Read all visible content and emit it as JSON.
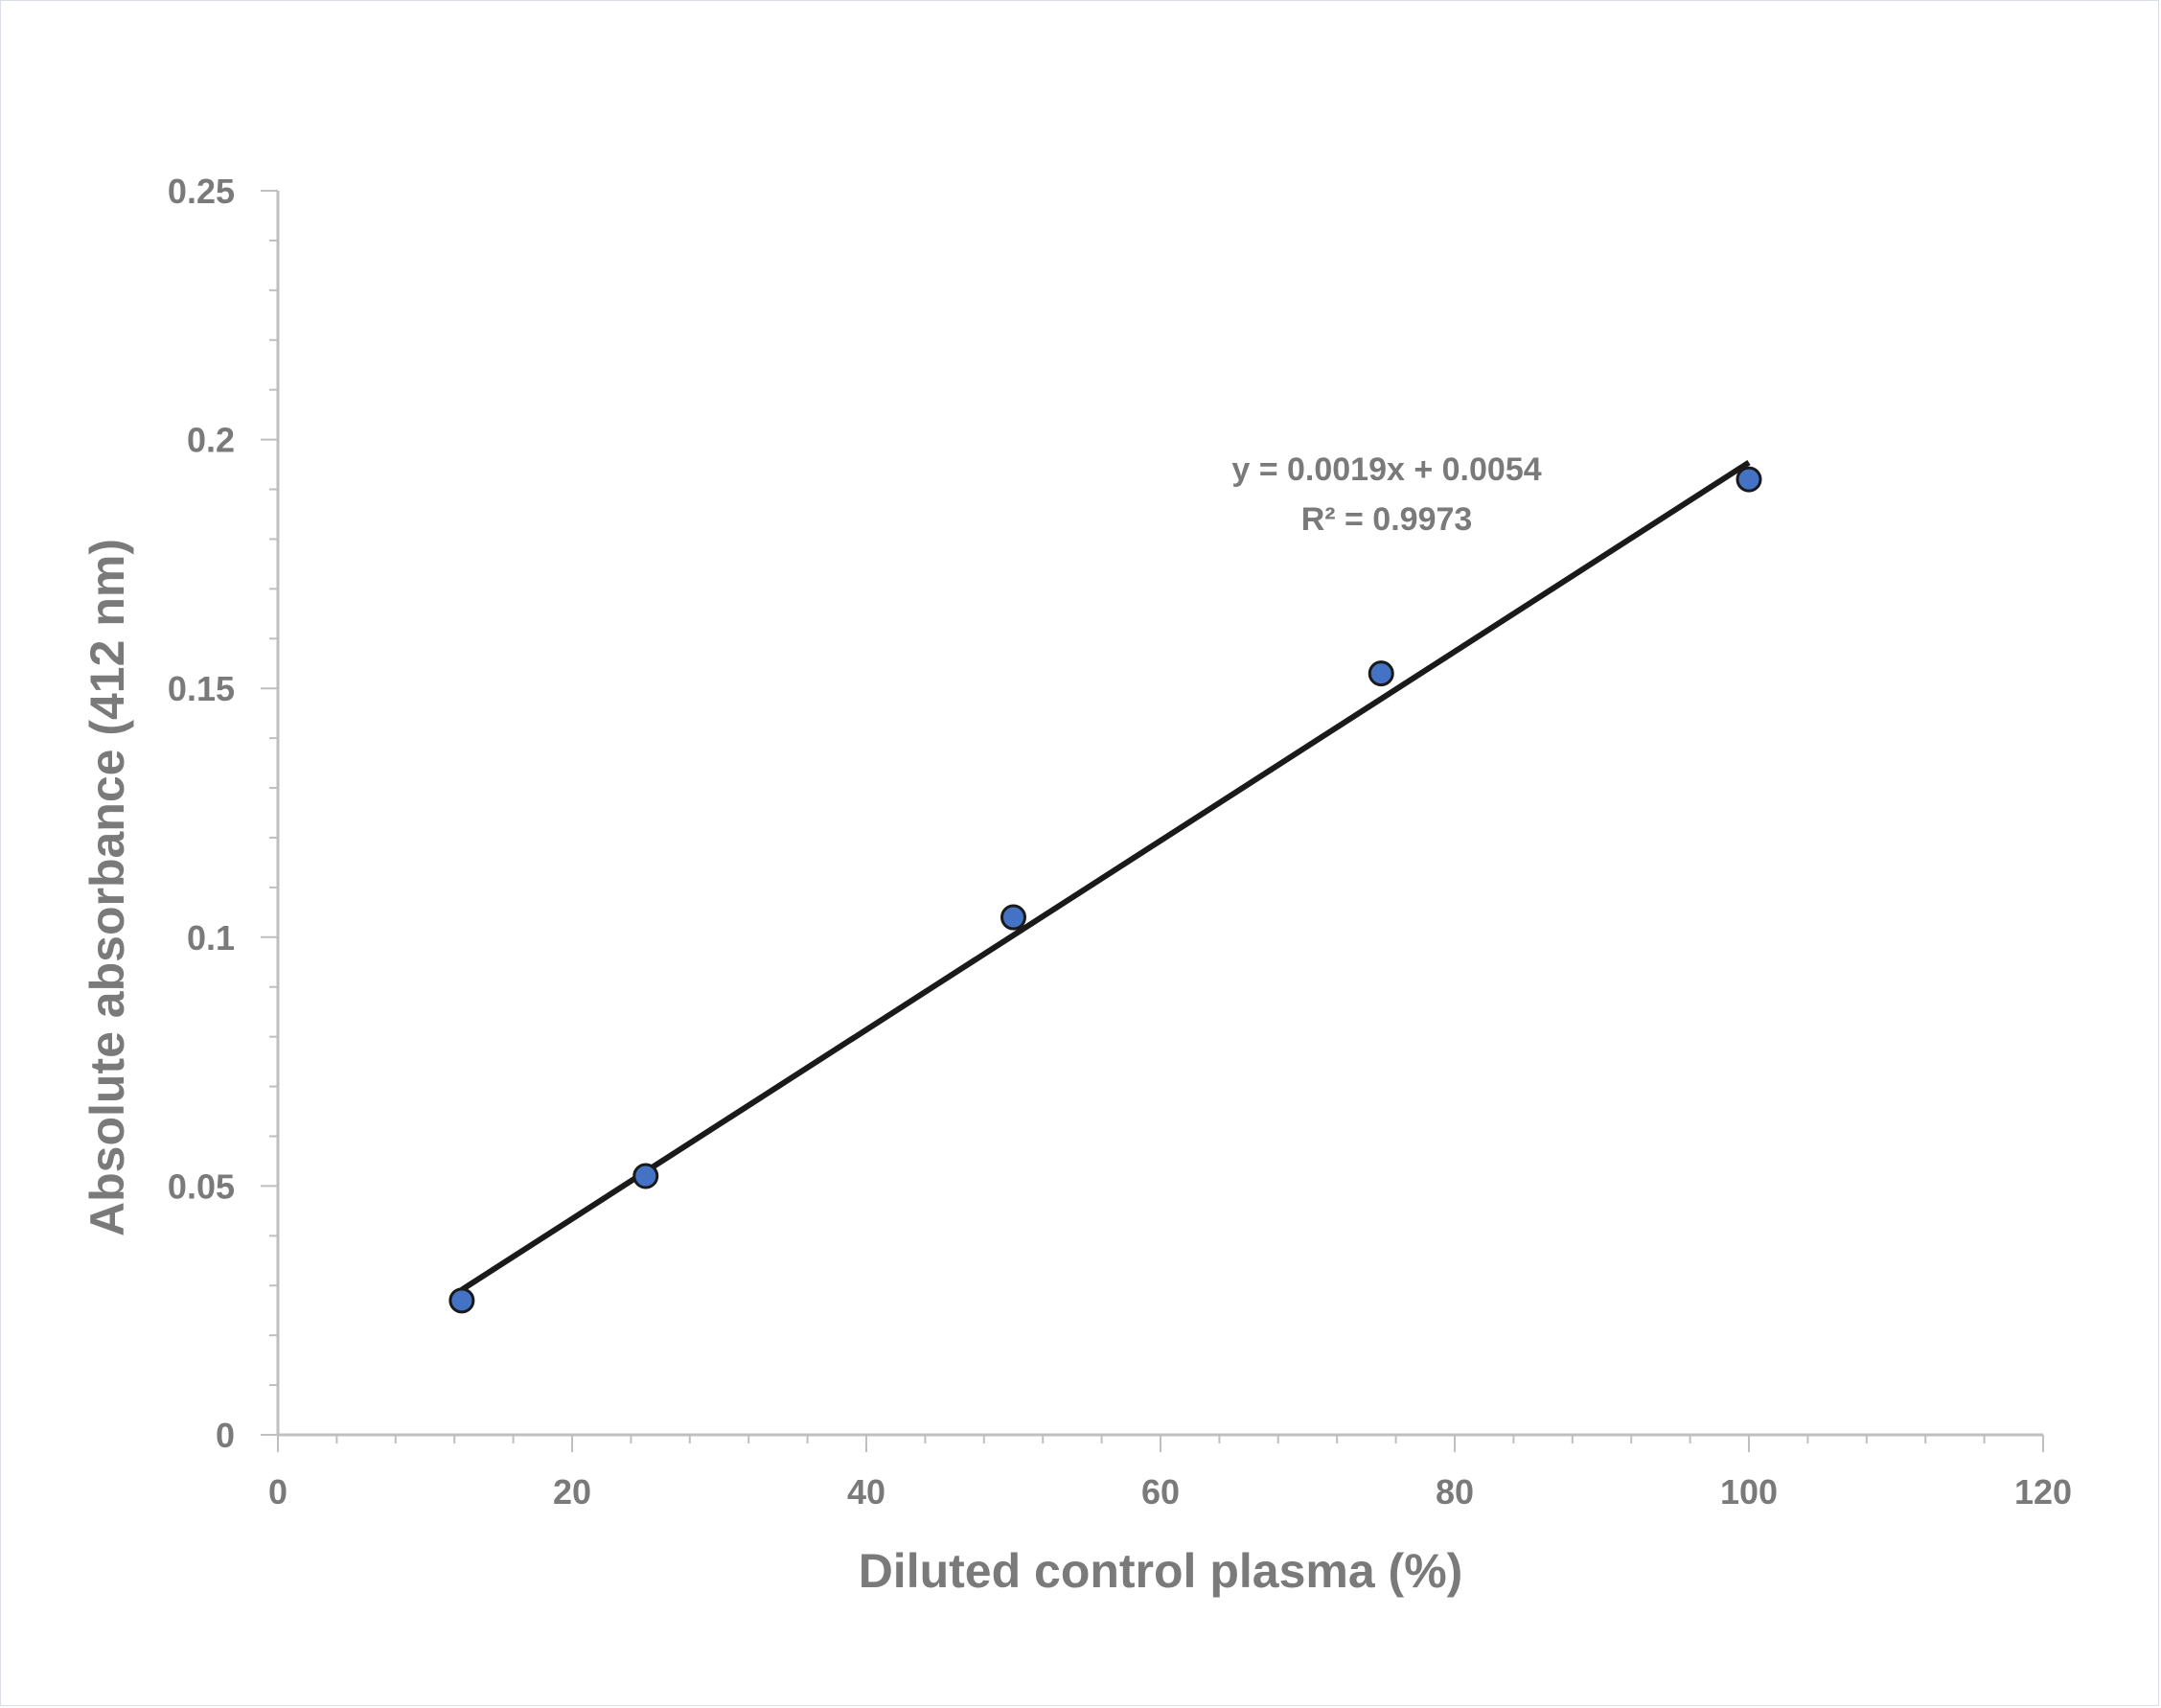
{
  "chart_data": {
    "type": "scatter",
    "title": "",
    "xlabel": "Diluted control plasma (%)",
    "ylabel": "Absolute absorbance (412 nm)",
    "xlim": [
      0,
      120
    ],
    "ylim": [
      0,
      0.25
    ],
    "x_ticks": [
      "0",
      "20",
      "40",
      "60",
      "80",
      "100",
      "120"
    ],
    "y_ticks": [
      "0",
      "0.05",
      "0.1",
      "0.15",
      "0.2",
      "0.25"
    ],
    "x": [
      12.5,
      25,
      50,
      75,
      100
    ],
    "y": [
      0.027,
      0.052,
      0.104,
      0.153,
      0.192
    ],
    "trendline": {
      "type": "linear",
      "slope": 0.0019,
      "intercept": 0.0054,
      "x_range": [
        12.5,
        100
      ],
      "equation_label": "y = 0.0019x + 0.0054",
      "r2_label": "R² = 0.9973"
    },
    "grid": false,
    "legend": "none",
    "marker_color": "#4472c4",
    "line_color": "#1a1a1a",
    "text_color": "#7a7a7a"
  }
}
